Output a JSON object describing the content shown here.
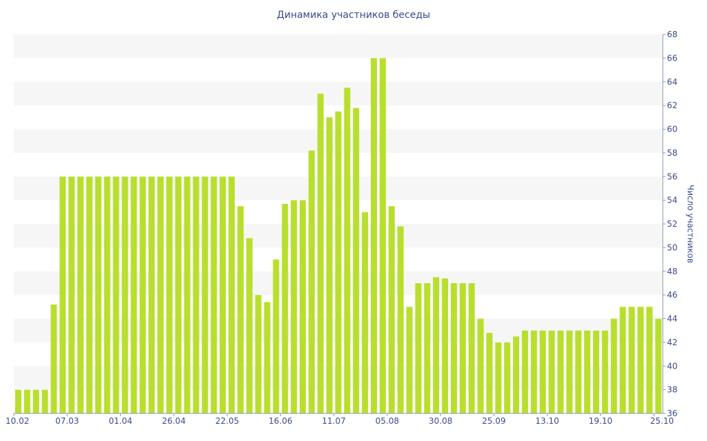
{
  "chart_data": {
    "type": "bar",
    "title": "Динамика участников беседы",
    "xlabel": "",
    "ylabel": "Число участников",
    "ylim": [
      36,
      68
    ],
    "yticks": [
      36,
      38,
      40,
      42,
      44,
      46,
      48,
      50,
      52,
      54,
      56,
      58,
      60,
      62,
      64,
      66,
      68
    ],
    "y_axis_position": "right",
    "grid": "alternating horizontal bands",
    "bar_color": "#b8df2e",
    "band_color": "#f6f6f6",
    "text_color": "#3b4a8a",
    "x_tick_labels": [
      "10.02",
      "07.03",
      "01.04",
      "26.04",
      "22.05",
      "16.06",
      "11.07",
      "05.08",
      "30.08",
      "25.09",
      "13.10",
      "19.10",
      "25.10"
    ],
    "x_tick_bar_index": [
      0,
      6,
      12,
      18,
      24,
      30,
      36,
      42,
      48,
      54,
      60,
      66,
      72
    ],
    "values": [
      38,
      38,
      38,
      38,
      45.2,
      56,
      56,
      56,
      56,
      56,
      56,
      56,
      56,
      56,
      56,
      56,
      56,
      56,
      56,
      56,
      56,
      56,
      56,
      56,
      56,
      53.5,
      50.8,
      46,
      45.4,
      49,
      53.7,
      54,
      54,
      58.2,
      63,
      61,
      61.5,
      63.5,
      61.8,
      53,
      66,
      66,
      53.5,
      51.8,
      45,
      47,
      47,
      47.5,
      47.4,
      47,
      47,
      47,
      44,
      42.8,
      42,
      42,
      42.5,
      43,
      43,
      43,
      43,
      43,
      43,
      43,
      43,
      43,
      43,
      44,
      45,
      45,
      45,
      45,
      44
    ]
  }
}
